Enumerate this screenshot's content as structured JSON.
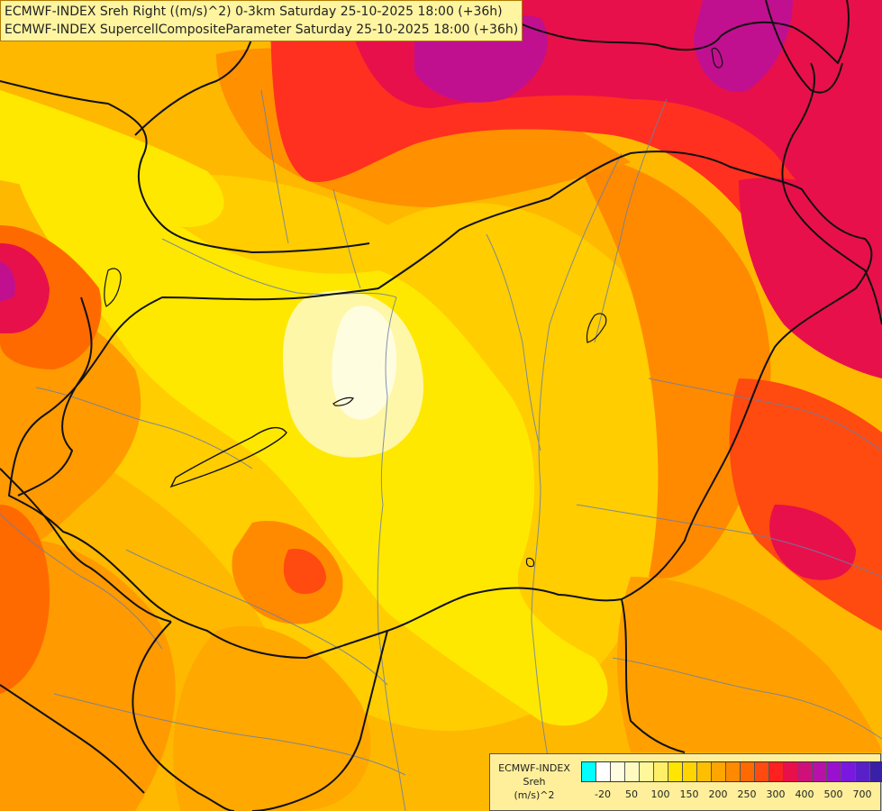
{
  "title": {
    "line1": "ECMWF-INDEX Sreh Right ((m/s)^2) 0-3km Saturday 25-10-2025 18:00 (+36h)",
    "line2": "ECMWF-INDEX SupercellCompositeParameter Saturday 25-10-2025 18:00 (+36h)"
  },
  "legend": {
    "model": "ECMWF-INDEX",
    "param": "Sreh",
    "unit": "(m/s)^2",
    "colors": [
      "#00ffff",
      "#ffffff",
      "#fffde0",
      "#fffbc0",
      "#fff799",
      "#ffef66",
      "#ffe500",
      "#ffd400",
      "#ffbf00",
      "#ffa500",
      "#ff8a00",
      "#ff6a00",
      "#ff4a10",
      "#ff2020",
      "#e8104a",
      "#d0107a",
      "#b810a8",
      "#9a10d0",
      "#7a18e0",
      "#5a20c8",
      "#3a20a8",
      "#1a1a88"
    ],
    "ticks": [
      "-20",
      "50",
      "100",
      "150",
      "200",
      "250",
      "300",
      "400",
      "500",
      "700"
    ]
  },
  "palette": {
    "yellow_light": "#fffbc0",
    "yellow": "#ffe500",
    "gold": "#ffc800",
    "orange": "#ff9a00",
    "orange_dark": "#ff6a00",
    "red": "#ff3020",
    "crimson": "#e8104a",
    "magenta": "#c01090"
  }
}
